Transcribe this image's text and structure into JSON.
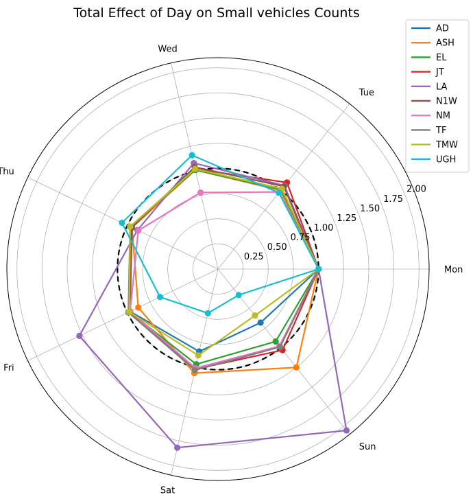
{
  "chart_data": {
    "type": "radar",
    "title": "Total Effect of Day on Small vehicles Counts",
    "categories": [
      "Mon",
      "Tue",
      "Wed",
      "Thu",
      "Fri",
      "Sat",
      "Sun"
    ],
    "radial_ticks": [
      "0.25",
      "0.50",
      "0.75",
      "1.00",
      "1.25",
      "1.50",
      "1.75",
      "2.00"
    ],
    "rlim": [
      0,
      2.1
    ],
    "grid": true,
    "legend_position": "top-right",
    "reference": {
      "value": 1.0,
      "style": "dashed",
      "color": "#000000"
    },
    "series": [
      {
        "name": "AD",
        "color": "#1f77b4",
        "values": [
          1.0,
          1.0,
          1.01,
          0.96,
          0.97,
          0.84,
          0.68
        ]
      },
      {
        "name": "ASH",
        "color": "#ff7f0e",
        "values": [
          1.0,
          1.0,
          1.01,
          0.95,
          0.88,
          1.06,
          1.25
        ]
      },
      {
        "name": "EL",
        "color": "#2ca02c",
        "values": [
          1.0,
          1.01,
          1.01,
          0.97,
          0.98,
          0.97,
          0.92
        ]
      },
      {
        "name": "JT",
        "color": "#d62728",
        "values": [
          1.0,
          1.1,
          1.02,
          0.97,
          0.97,
          1.02,
          1.03
        ]
      },
      {
        "name": "LA",
        "color": "#9467bd",
        "values": [
          1.0,
          1.06,
          1.08,
          0.89,
          1.53,
          1.82,
          2.05
        ]
      },
      {
        "name": "N1W",
        "color": "#8c564b",
        "values": [
          1.0,
          1.05,
          1.04,
          0.95,
          0.97,
          1.02,
          0.98
        ]
      },
      {
        "name": "NM",
        "color": "#e377c2",
        "values": [
          1.0,
          0.98,
          0.78,
          0.88,
          0.97,
          1.01,
          0.98
        ]
      },
      {
        "name": "TF",
        "color": "#7f7f7f",
        "values": [
          1.0,
          1.02,
          1.02,
          0.97,
          0.99,
          1.03,
          0.99
        ]
      },
      {
        "name": "TMW",
        "color": "#bcbd22",
        "values": [
          1.0,
          1.02,
          1.02,
          0.97,
          0.98,
          0.88,
          0.59
        ]
      },
      {
        "name": "UGH",
        "color": "#17becf",
        "values": [
          1.0,
          0.97,
          1.16,
          1.06,
          0.64,
          0.45,
          0.33
        ]
      }
    ]
  }
}
